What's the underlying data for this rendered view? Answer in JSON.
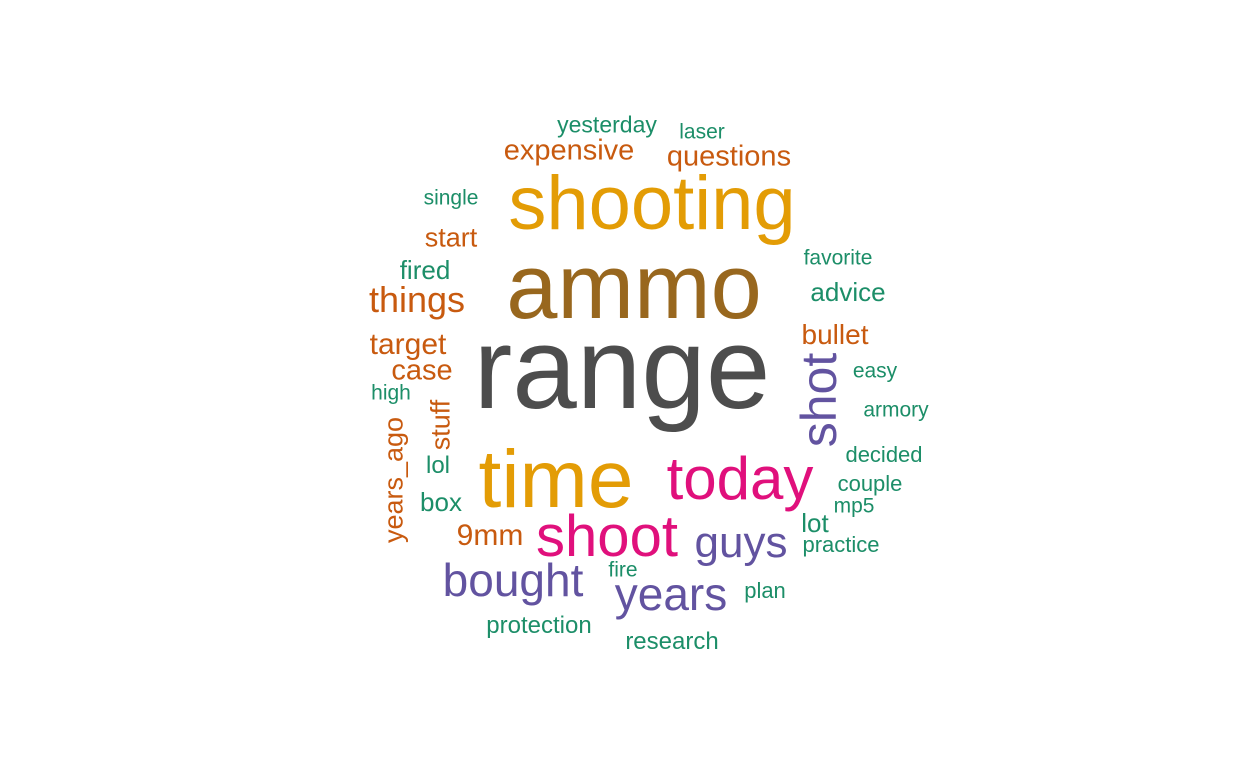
{
  "palette": {
    "gray": "#4d4d4d",
    "brown": "#98671e",
    "gold": "#e39c05",
    "magenta": "#e0107c",
    "purple": "#6253a0",
    "orange": "#c85a0f",
    "green": "#1c8e68"
  },
  "words": [
    {
      "text": "range",
      "color": "gray"
    },
    {
      "text": "ammo",
      "color": "brown"
    },
    {
      "text": "shooting",
      "color": "gold"
    },
    {
      "text": "time",
      "color": "gold"
    },
    {
      "text": "today",
      "color": "magenta"
    },
    {
      "text": "shoot",
      "color": "magenta"
    },
    {
      "text": "shot",
      "color": "purple"
    },
    {
      "text": "bought",
      "color": "purple"
    },
    {
      "text": "years",
      "color": "purple"
    },
    {
      "text": "guys",
      "color": "purple"
    },
    {
      "text": "things",
      "color": "orange"
    },
    {
      "text": "expensive",
      "color": "orange"
    },
    {
      "text": "questions",
      "color": "orange"
    },
    {
      "text": "target",
      "color": "orange"
    },
    {
      "text": "bullet",
      "color": "orange"
    },
    {
      "text": "9mm",
      "color": "orange"
    },
    {
      "text": "case",
      "color": "orange"
    },
    {
      "text": "start",
      "color": "orange"
    },
    {
      "text": "years_ago",
      "color": "orange"
    },
    {
      "text": "stuff",
      "color": "orange"
    },
    {
      "text": "yesterday",
      "color": "green"
    },
    {
      "text": "laser",
      "color": "green"
    },
    {
      "text": "single",
      "color": "green"
    },
    {
      "text": "fired",
      "color": "green"
    },
    {
      "text": "favorite",
      "color": "green"
    },
    {
      "text": "advice",
      "color": "green"
    },
    {
      "text": "high",
      "color": "green"
    },
    {
      "text": "easy",
      "color": "green"
    },
    {
      "text": "armory",
      "color": "green"
    },
    {
      "text": "decided",
      "color": "green"
    },
    {
      "text": "couple",
      "color": "green"
    },
    {
      "text": "lol",
      "color": "green"
    },
    {
      "text": "box",
      "color": "green"
    },
    {
      "text": "mp5",
      "color": "green"
    },
    {
      "text": "lot",
      "color": "green"
    },
    {
      "text": "practice",
      "color": "green"
    },
    {
      "text": "fire",
      "color": "green"
    },
    {
      "text": "plan",
      "color": "green"
    },
    {
      "text": "protection",
      "color": "green"
    },
    {
      "text": "research",
      "color": "green"
    }
  ]
}
